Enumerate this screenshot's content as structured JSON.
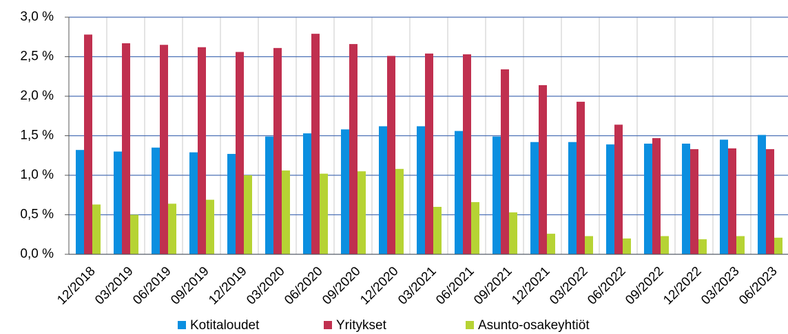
{
  "chart_data": {
    "type": "bar",
    "categories": [
      "12/2018",
      "03/2019",
      "06/2019",
      "09/2019",
      "12/2019",
      "03/2020",
      "06/2020",
      "09/2020",
      "12/2020",
      "03/2021",
      "06/2021",
      "09/2021",
      "12/2021",
      "03/2022",
      "06/2022",
      "09/2022",
      "12/2022",
      "03/2023",
      "06/2023"
    ],
    "series": [
      {
        "name": "Kotitaloudet",
        "color": "#0b8fe0",
        "values": [
          1.32,
          1.3,
          1.35,
          1.29,
          1.27,
          1.49,
          1.53,
          1.58,
          1.62,
          1.62,
          1.56,
          1.49,
          1.42,
          1.42,
          1.39,
          1.4,
          1.4,
          1.45,
          1.51
        ]
      },
      {
        "name": "Yritykset",
        "color": "#c0304f",
        "values": [
          2.78,
          2.67,
          2.65,
          2.62,
          2.56,
          2.61,
          2.79,
          2.66,
          2.51,
          2.54,
          2.53,
          2.34,
          2.14,
          1.93,
          1.64,
          1.47,
          1.33,
          1.34,
          1.33
        ]
      },
      {
        "name": "Asunto-osakeyhtiöt",
        "color": "#b6d334",
        "values": [
          0.63,
          0.5,
          0.64,
          0.69,
          1.0,
          1.06,
          1.02,
          1.05,
          1.08,
          0.6,
          0.66,
          0.53,
          0.26,
          0.23,
          0.2,
          0.23,
          0.19,
          0.23,
          0.21
        ]
      }
    ],
    "ylim": [
      0,
      3
    ],
    "yticks": [
      {
        "value": 0,
        "label": "0,0 %"
      },
      {
        "value": 0.5,
        "label": "0,5 %"
      },
      {
        "value": 1,
        "label": "1,0 %"
      },
      {
        "value": 1.5,
        "label": "1,5 %"
      },
      {
        "value": 2,
        "label": "2,0 %"
      },
      {
        "value": 2.5,
        "label": "2,5 %"
      },
      {
        "value": 3,
        "label": "3,0 %"
      }
    ],
    "grid": true,
    "legend": "bottom"
  }
}
